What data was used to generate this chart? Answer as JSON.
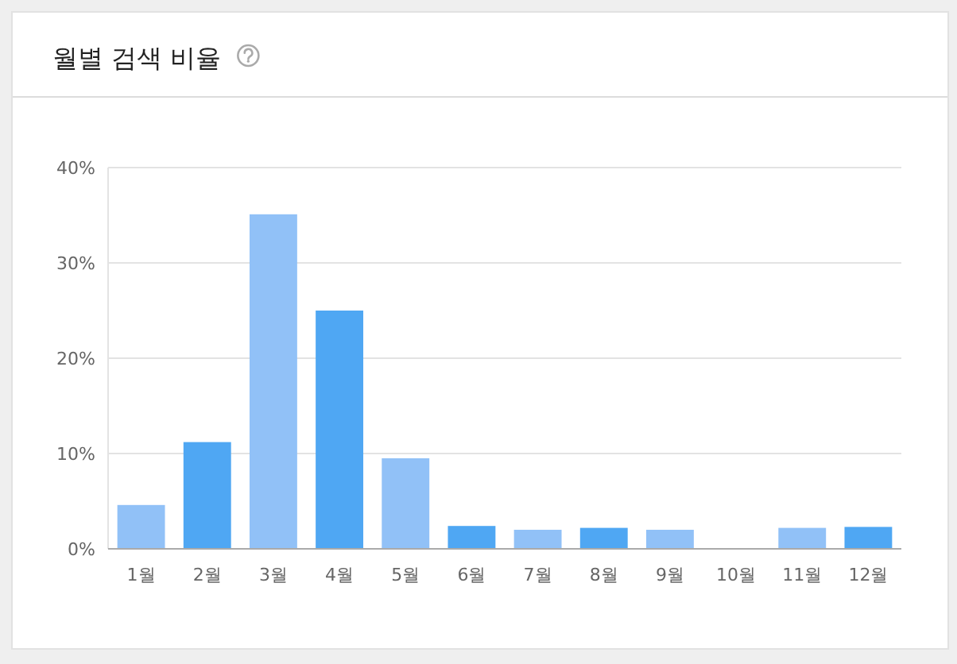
{
  "chart_data": {
    "type": "bar",
    "title": "월별 검색 비율",
    "categories": [
      "1월",
      "2월",
      "3월",
      "4월",
      "5월",
      "6월",
      "7월",
      "8월",
      "9월",
      "10월",
      "11월",
      "12월"
    ],
    "values": [
      4.6,
      11.2,
      35.1,
      25.0,
      9.5,
      2.4,
      2.0,
      2.2,
      2.0,
      0,
      2.2,
      2.3
    ],
    "colors": [
      "#91c1f7",
      "#4fa7f3",
      "#91c1f7",
      "#4fa7f3",
      "#91c1f7",
      "#4fa7f3",
      "#91c1f7",
      "#4fa7f3",
      "#91c1f7",
      "#4fa7f3",
      "#91c1f7",
      "#4fa7f3"
    ],
    "ylim": [
      0,
      40
    ],
    "yticks": [
      {
        "value": 0,
        "label": "0%"
      },
      {
        "value": 10,
        "label": "10%"
      },
      {
        "value": 20,
        "label": "20%"
      },
      {
        "value": 30,
        "label": "30%"
      },
      {
        "value": 40,
        "label": "40%"
      }
    ],
    "grid": "y"
  }
}
